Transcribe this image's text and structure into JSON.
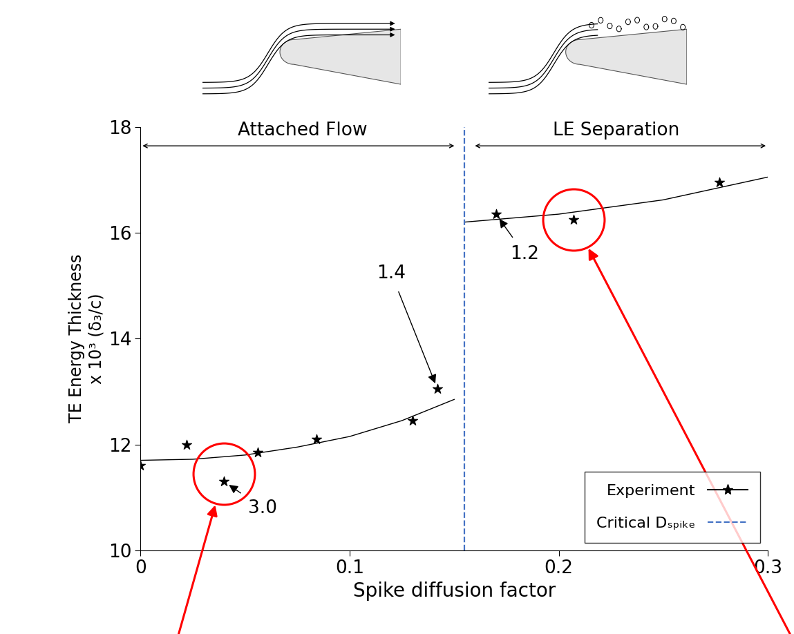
{
  "chart_data": {
    "type": "scatter",
    "x_label": "Spike diffusion factor",
    "y_label": "TE Energy Thickness\nx 10³ (δ₃/c)",
    "xlim": [
      0,
      0.3
    ],
    "xticks": [
      0,
      0.1,
      0.2,
      0.3
    ],
    "ylim": [
      10,
      18
    ],
    "yticks": [
      10,
      12,
      14,
      16,
      18
    ],
    "legend": "lower right",
    "series": [
      {
        "name": "Experiment",
        "type": "scatter",
        "marker": "star",
        "color": "#000000",
        "x": [
          0.0,
          0.022,
          0.04,
          0.056,
          0.084,
          0.13,
          0.142,
          0.17,
          0.207,
          0.277
        ],
        "values": [
          11.6,
          12.0,
          11.3,
          11.85,
          12.1,
          12.45,
          13.05,
          16.35,
          16.25,
          16.95
        ]
      },
      {
        "name": null,
        "type": "line",
        "line_style": "solid",
        "color": "#000000",
        "x": [
          0.0,
          0.025,
          0.05,
          0.075,
          0.1,
          0.125,
          0.15
        ],
        "values": [
          11.7,
          11.72,
          11.8,
          11.95,
          12.15,
          12.45,
          12.85
        ]
      },
      {
        "name": null,
        "type": "line",
        "line_style": "solid",
        "color": "#000000",
        "x": [
          0.155,
          0.2,
          0.25,
          0.3
        ],
        "values": [
          16.2,
          16.35,
          16.62,
          17.05
        ]
      }
    ],
    "reference_lines": [
      {
        "name": "Critical Dₛₚᵢₖₑ",
        "x": 0.155,
        "color": "#4472c4",
        "line_style": "dashed"
      }
    ],
    "regions": [
      {
        "label": "Attached Flow"
      },
      {
        "label": "LE Separation"
      }
    ],
    "annotations": [
      {
        "text": "1.4",
        "x": 0.142,
        "y": 13.05
      },
      {
        "text": "1.2",
        "x": 0.17,
        "y": 16.35
      },
      {
        "text": "3.0",
        "x": 0.04,
        "y": 11.3
      }
    ]
  }
}
